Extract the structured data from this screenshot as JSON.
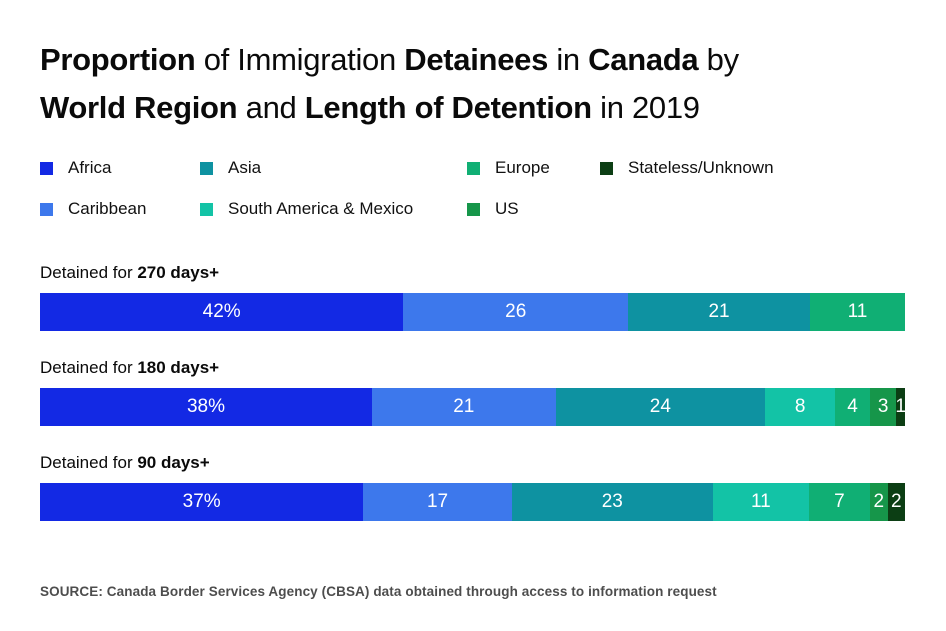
{
  "title": {
    "segments": [
      {
        "text": "Proportion",
        "bold": true
      },
      {
        "text": " of Immigration ",
        "bold": false
      },
      {
        "text": "Detainees",
        "bold": true
      },
      {
        "text": " in ",
        "bold": false
      },
      {
        "text": "Canada",
        "bold": true
      },
      {
        "text": " by",
        "bold": false,
        "br": true
      },
      {
        "text": "World Region",
        "bold": true
      },
      {
        "text": " and ",
        "bold": false
      },
      {
        "text": "Length of Detention",
        "bold": true
      },
      {
        "text": " in 2019",
        "bold": false
      }
    ]
  },
  "regions": [
    {
      "name": "Africa",
      "color": "#1329E4"
    },
    {
      "name": "Caribbean",
      "color": "#3D78EC"
    },
    {
      "name": "Asia",
      "color": "#0E92A1"
    },
    {
      "name": "South America & Mexico",
      "color": "#13C3A6"
    },
    {
      "name": "Europe",
      "color": "#10AF74"
    },
    {
      "name": "US",
      "color": "#16964A"
    },
    {
      "name": "Stateless/Unknown",
      "color": "#0C3E14"
    }
  ],
  "legend": {
    "rows": [
      [
        "Africa",
        "Asia",
        "Europe",
        "Stateless/Unknown"
      ],
      [
        "Caribbean",
        "South America & Mexico",
        "US"
      ]
    ]
  },
  "bars": [
    {
      "label_prefix": "Detained for ",
      "label_bold": "270 days+",
      "segments": [
        {
          "region": "Africa",
          "value": 42,
          "label": "42%"
        },
        {
          "region": "Caribbean",
          "value": 26,
          "label": "26"
        },
        {
          "region": "Asia",
          "value": 21,
          "label": "21"
        },
        {
          "region": "Europe",
          "value": 11,
          "label": "11"
        }
      ]
    },
    {
      "label_prefix": "Detained for ",
      "label_bold": "180 days+",
      "segments": [
        {
          "region": "Africa",
          "value": 38,
          "label": "38%"
        },
        {
          "region": "Caribbean",
          "value": 21,
          "label": "21"
        },
        {
          "region": "Asia",
          "value": 24,
          "label": "24"
        },
        {
          "region": "South America & Mexico",
          "value": 8,
          "label": "8"
        },
        {
          "region": "Europe",
          "value": 4,
          "label": "4"
        },
        {
          "region": "US",
          "value": 3,
          "label": "3"
        },
        {
          "region": "Stateless/Unknown",
          "value": 1,
          "label": "1"
        }
      ]
    },
    {
      "label_prefix": "Detained for ",
      "label_bold": "90 days+",
      "segments": [
        {
          "region": "Africa",
          "value": 37,
          "label": "37%"
        },
        {
          "region": "Caribbean",
          "value": 17,
          "label": "17"
        },
        {
          "region": "Asia",
          "value": 23,
          "label": "23"
        },
        {
          "region": "South America & Mexico",
          "value": 11,
          "label": "11"
        },
        {
          "region": "Europe",
          "value": 7,
          "label": "7"
        },
        {
          "region": "US",
          "value": 2,
          "label": "2"
        },
        {
          "region": "Stateless/Unknown",
          "value": 2,
          "label": "2"
        }
      ]
    }
  ],
  "chart_data": {
    "type": "bar",
    "orientation": "horizontal-stacked",
    "title": "Proportion of Immigration Detainees in Canada by World Region and Length of Detention in 2019",
    "categories": [
      "Detained for 270 days+",
      "Detained for 180 days+",
      "Detained for 90 days+"
    ],
    "series": [
      {
        "name": "Africa",
        "values": [
          42,
          38,
          37
        ]
      },
      {
        "name": "Caribbean",
        "values": [
          26,
          21,
          17
        ]
      },
      {
        "name": "Asia",
        "values": [
          21,
          24,
          23
        ]
      },
      {
        "name": "South America & Mexico",
        "values": [
          0,
          8,
          11
        ]
      },
      {
        "name": "Europe",
        "values": [
          11,
          4,
          7
        ]
      },
      {
        "name": "US",
        "values": [
          0,
          3,
          2
        ]
      },
      {
        "name": "Stateless/Unknown",
        "values": [
          0,
          1,
          2
        ]
      }
    ],
    "units": "percent",
    "xlim": [
      0,
      100
    ],
    "grid": false,
    "legend_position": "top",
    "value_labels": "inside-white, first segment of each bar shows % sign"
  },
  "source": "SOURCE: Canada Border Services Agency (CBSA) data obtained through access to information request"
}
